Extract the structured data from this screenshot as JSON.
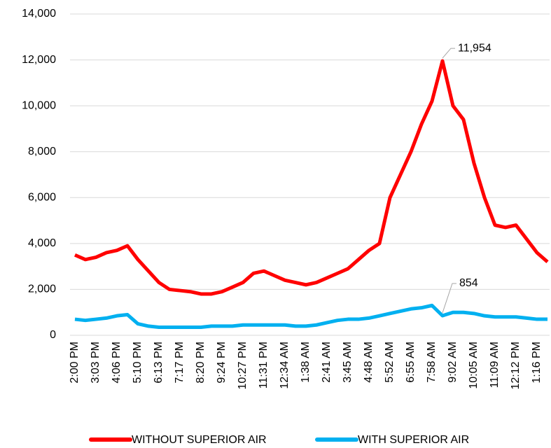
{
  "chart_data": {
    "type": "line",
    "categories": [
      "2:00 PM",
      null,
      "3:03 PM",
      null,
      "4:06 PM",
      null,
      "5:10 PM",
      null,
      "6:13 PM",
      null,
      "7:17 PM",
      null,
      "8:20 PM",
      null,
      "9:24 PM",
      null,
      "10:27 PM",
      null,
      "11:31 PM",
      null,
      "12:34 AM",
      null,
      "1:38 AM",
      null,
      "2:41 AM",
      null,
      "3:45 AM",
      null,
      "4:48 AM",
      null,
      "5:52 AM",
      null,
      "6:55 AM",
      null,
      "7:58 AM",
      null,
      "9:02 AM",
      null,
      "10:05 AM",
      null,
      "11:09 AM",
      null,
      "12:12 PM",
      null,
      "1:16 PM",
      null
    ],
    "series": [
      {
        "name": "WITHOUT SUPERIOR AIR",
        "color": "#ff0000",
        "values": [
          3500,
          3300,
          3400,
          3600,
          3700,
          3900,
          3300,
          2800,
          2300,
          2000,
          1950,
          1900,
          1800,
          1800,
          1900,
          2100,
          2300,
          2700,
          2800,
          2600,
          2400,
          2300,
          2200,
          2300,
          2500,
          2700,
          2900,
          3300,
          3700,
          4000,
          6000,
          7000,
          8000,
          9200,
          10200,
          11954,
          10000,
          9400,
          7500,
          6000,
          4800,
          4700,
          4800,
          4200,
          3600,
          3200
        ],
        "value_labels": [
          null,
          null,
          null,
          null,
          null,
          null,
          null,
          null,
          null,
          null,
          null,
          null,
          null,
          null,
          null,
          null,
          null,
          null,
          null,
          null,
          null,
          null,
          null,
          null,
          null,
          null,
          null,
          null,
          null,
          null,
          null,
          null,
          null,
          null,
          null,
          "11,954",
          null,
          null,
          null,
          null,
          null,
          null,
          null,
          null,
          null,
          null
        ]
      },
      {
        "name": "WITH SUPERIOR AIR",
        "color": "#00b0f0",
        "values": [
          700,
          650,
          700,
          750,
          850,
          900,
          500,
          400,
          350,
          350,
          350,
          350,
          350,
          400,
          400,
          400,
          450,
          450,
          450,
          450,
          450,
          400,
          400,
          450,
          550,
          650,
          700,
          700,
          750,
          850,
          950,
          1050,
          1150,
          1200,
          1300,
          854,
          1000,
          1000,
          950,
          850,
          800,
          800,
          800,
          750,
          700,
          700
        ],
        "value_labels": [
          null,
          null,
          null,
          null,
          null,
          null,
          null,
          null,
          null,
          null,
          null,
          null,
          null,
          null,
          null,
          null,
          null,
          null,
          null,
          null,
          null,
          null,
          null,
          null,
          null,
          null,
          null,
          null,
          null,
          null,
          null,
          null,
          null,
          null,
          null,
          "854",
          null,
          null,
          null,
          null,
          null,
          null,
          null,
          null,
          null,
          null
        ]
      }
    ],
    "ylim": [
      0,
      14000
    ],
    "yticks": [
      0,
      {
        "value": 2000,
        "label": "2,000"
      },
      {
        "value": 4000,
        "label": "4,000"
      },
      {
        "value": 6000,
        "label": "6,000"
      },
      {
        "value": 8000,
        "label": "8,000"
      },
      {
        "value": 10000,
        "label": "10,000"
      },
      {
        "value": 12000,
        "label": "12,000"
      },
      {
        "value": 14000,
        "label": "14,000"
      }
    ],
    "grid": true,
    "legend": "bottom"
  }
}
